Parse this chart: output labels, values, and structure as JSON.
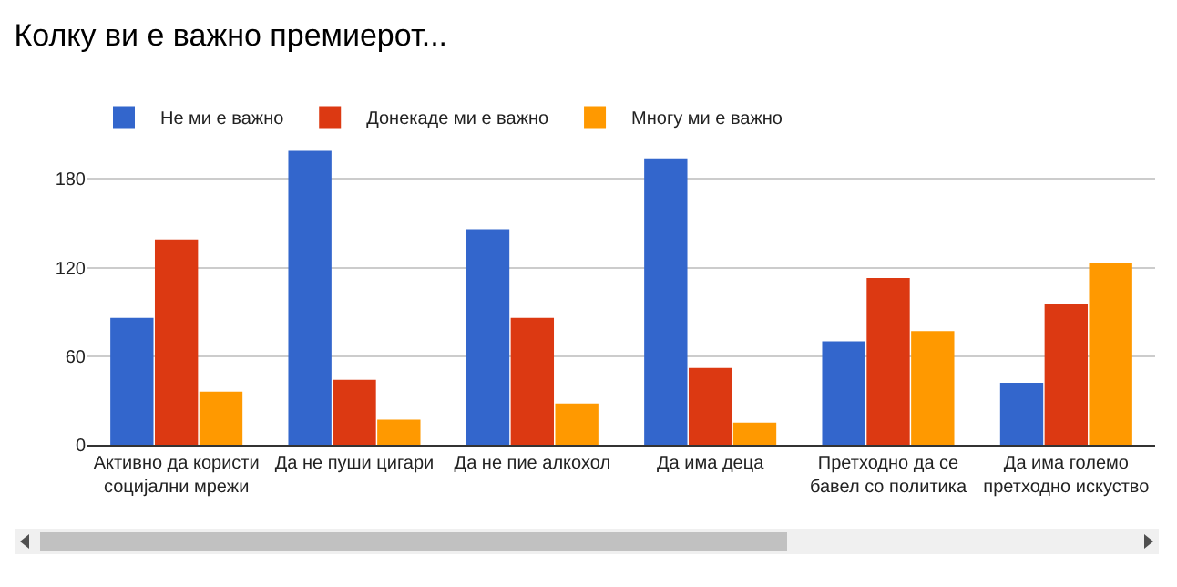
{
  "chart_data": {
    "type": "bar",
    "title": "Колку ви е важно премиерот...",
    "categories": [
      "Активно да користи социјални мрежи",
      "Да не пуши цигари",
      "Да не пие алкохол",
      "Да има деца",
      "Претходно да се бавел со политика",
      "Да има големо претходно искуство"
    ],
    "series": [
      {
        "name": "Не ми е важно",
        "color": "#3366cc",
        "values": [
          86,
          199,
          146,
          194,
          70,
          42
        ]
      },
      {
        "name": "Донекаде ми е важно",
        "color": "#dc3912",
        "values": [
          139,
          44,
          86,
          52,
          113,
          95
        ]
      },
      {
        "name": "Многу ми е важно",
        "color": "#ff9900",
        "values": [
          36,
          17,
          28,
          15,
          77,
          123
        ]
      }
    ],
    "ylim": [
      0,
      200
    ],
    "yticks": [
      0,
      60,
      120,
      180
    ],
    "grid": "y",
    "legend": "top left"
  }
}
